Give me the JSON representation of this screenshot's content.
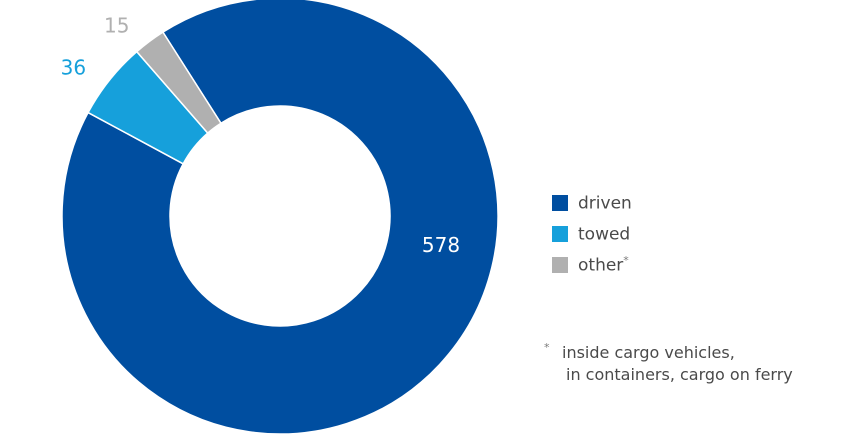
{
  "chart_data": {
    "type": "pie",
    "donut": true,
    "slices": [
      {
        "label": "driven",
        "value": 578,
        "color": "#004ea0"
      },
      {
        "label": "towed",
        "value": 36,
        "color": "#16a0db"
      },
      {
        "label": "other",
        "value": 15,
        "color": "#b0b0b0"
      }
    ],
    "legend": [
      {
        "label": "driven",
        "marker": "",
        "color": "#004ea0"
      },
      {
        "label": "towed",
        "marker": "",
        "color": "#16a0db"
      },
      {
        "label": "other",
        "marker": "*",
        "color": "#b0b0b0"
      }
    ],
    "legend_position": "right",
    "footnote": {
      "marker": "*",
      "lines": [
        "inside cargo vehicles,",
        "in containers, cargo on ferry"
      ]
    }
  }
}
